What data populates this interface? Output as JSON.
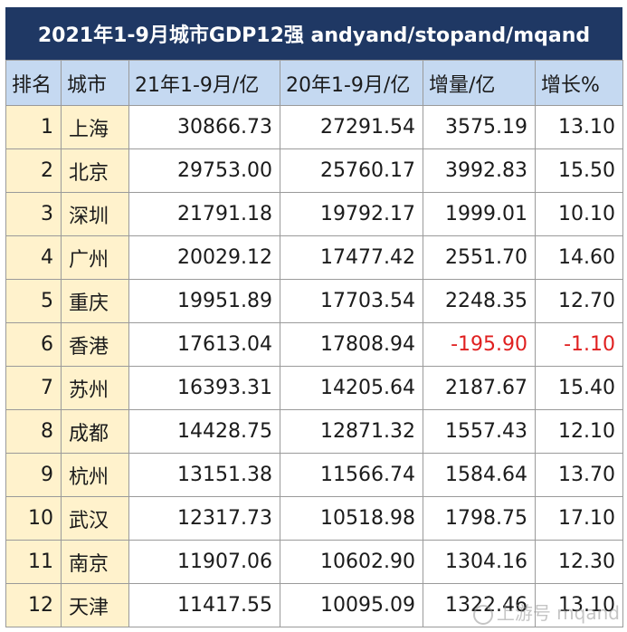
{
  "title": "2021年1-9月城市GDP12强 andyand/stopand/mqand",
  "headers": [
    "排名",
    "城市",
    "21年1-9月/亿",
    "20年1-9月/亿",
    "增量/亿",
    "增长%"
  ],
  "rows": [
    [
      "1",
      "上海",
      "30866.73",
      "27291.54",
      "3575.19",
      "13.10"
    ],
    [
      "2",
      "北京",
      "29753.00",
      "25760.17",
      "3992.83",
      "15.50"
    ],
    [
      "3",
      "深圳",
      "21791.18",
      "19792.17",
      "1999.01",
      "10.10"
    ],
    [
      "4",
      "广州",
      "20029.12",
      "17477.42",
      "2551.70",
      "14.60"
    ],
    [
      "5",
      "重庆",
      "19951.89",
      "17703.54",
      "2248.35",
      "12.70"
    ],
    [
      "6",
      "香港",
      "17613.04",
      "17808.94",
      "-195.90",
      "-1.10"
    ],
    [
      "7",
      "苏州",
      "16393.31",
      "14205.64",
      "2187.67",
      "15.40"
    ],
    [
      "8",
      "成都",
      "14428.75",
      "12871.32",
      "1557.43",
      "12.10"
    ],
    [
      "9",
      "杭州",
      "13151.38",
      "11566.74",
      "1584.64",
      "13.70"
    ],
    [
      "10",
      "武汉",
      "12317.73",
      "10518.98",
      "1798.75",
      "17.10"
    ],
    [
      "11",
      "南京",
      "11907.06",
      "10602.90",
      "1304.16",
      "12.30"
    ],
    [
      "12",
      "天津",
      "11417.55",
      "10095.09",
      "1322.46",
      "13.10"
    ]
  ],
  "watermark": "上游号 mqand",
  "colors": {
    "title_bg": "#1f3864",
    "header_bg": "#c5d9f1",
    "rank_city_bg": "#fff2cc",
    "negative_text": "#e02020"
  }
}
